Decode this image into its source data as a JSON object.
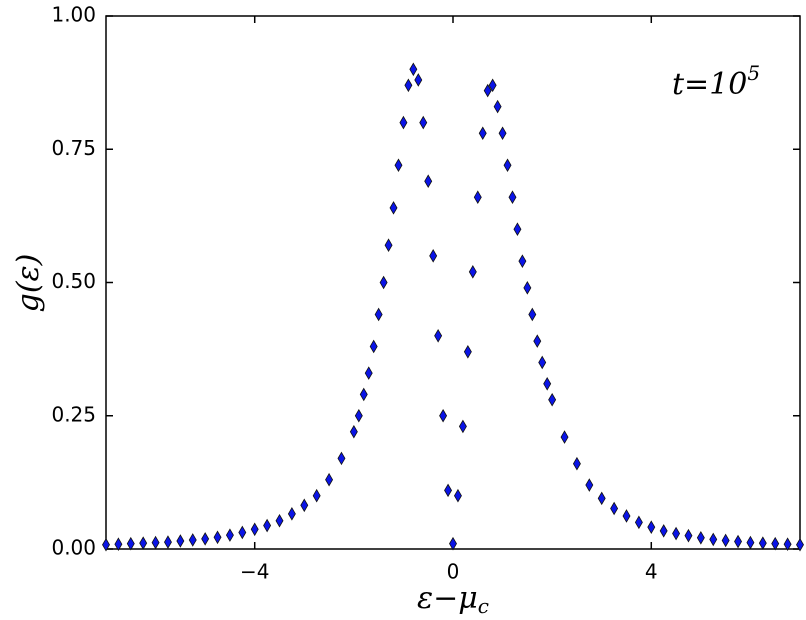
{
  "chart_data": {
    "type": "scatter",
    "xlabel": {
      "base": "ε−μ",
      "sub": "c"
    },
    "ylabel": "g(ε)",
    "annotation": {
      "base": "t=10",
      "sup": "5"
    },
    "xlim": [
      -7,
      7
    ],
    "ylim": [
      0,
      1
    ],
    "xticks": [
      {
        "value": -4,
        "label": "−4"
      },
      0,
      4
    ],
    "yticks": [
      {
        "value": 0,
        "label": "0.00"
      },
      {
        "value": 0.25,
        "label": "0.25"
      },
      {
        "value": 0.5,
        "label": "0.50"
      },
      {
        "value": 0.75,
        "label": "0.75"
      },
      {
        "value": 1,
        "label": "1.00"
      }
    ],
    "grid": false,
    "series": [
      {
        "color": "#0a14e6",
        "x": [
          -7,
          -6.75,
          -6.5,
          -6.25,
          -6,
          -5.75,
          -5.5,
          -5.25,
          -5,
          -4.75,
          -4.5,
          -4.25,
          -4,
          -3.75,
          -3.5,
          -3.25,
          -3,
          -2.75,
          -2.5,
          -2.25,
          -2,
          -1.9,
          -1.8,
          -1.7,
          -1.6,
          -1.5,
          -1.4,
          -1.3,
          -1.2,
          -1.1,
          -1,
          -0.9,
          -0.8,
          -0.7,
          -0.6,
          -0.5,
          -0.4,
          -0.3,
          -0.2,
          -0.1,
          0,
          0.1,
          0.2,
          0.3,
          0.4,
          0.5,
          0.6,
          0.7,
          0.8,
          0.9,
          1,
          1.1,
          1.2,
          1.3,
          1.4,
          1.5,
          1.6,
          1.7,
          1.8,
          1.9,
          2,
          2.25,
          2.5,
          2.75,
          3,
          3.25,
          3.5,
          3.75,
          4,
          4.25,
          4.5,
          4.75,
          5,
          5.25,
          5.5,
          5.75,
          6,
          6.25,
          6.5,
          6.75,
          7
        ],
        "values": [
          0.008,
          0.009,
          0.01,
          0.011,
          0.012,
          0.013,
          0.015,
          0.017,
          0.019,
          0.022,
          0.026,
          0.031,
          0.037,
          0.044,
          0.053,
          0.066,
          0.082,
          0.1,
          0.13,
          0.17,
          0.22,
          0.25,
          0.29,
          0.33,
          0.38,
          0.44,
          0.5,
          0.57,
          0.64,
          0.72,
          0.8,
          0.87,
          0.9,
          0.88,
          0.8,
          0.69,
          0.55,
          0.4,
          0.25,
          0.11,
          0.01,
          0.1,
          0.23,
          0.37,
          0.52,
          0.66,
          0.78,
          0.86,
          0.87,
          0.83,
          0.78,
          0.72,
          0.66,
          0.6,
          0.54,
          0.49,
          0.44,
          0.39,
          0.35,
          0.31,
          0.28,
          0.21,
          0.16,
          0.12,
          0.095,
          0.076,
          0.062,
          0.05,
          0.041,
          0.034,
          0.029,
          0.025,
          0.021,
          0.018,
          0.016,
          0.014,
          0.012,
          0.011,
          0.01,
          0.009,
          0.008
        ]
      }
    ]
  }
}
